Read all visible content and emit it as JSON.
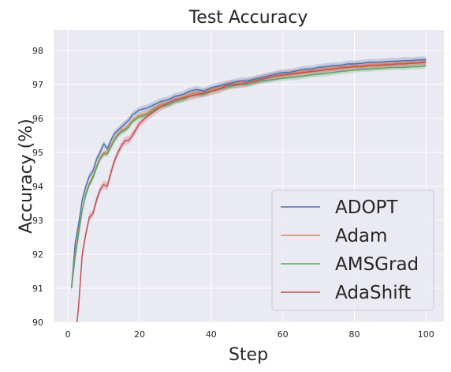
{
  "chart_data": {
    "type": "line",
    "title": "Test Accuracy",
    "xlabel": "Step",
    "ylabel": "Accuracy (%)",
    "xlim": [
      -4,
      105
    ],
    "ylim": [
      90,
      98.6
    ],
    "xticks": [
      0,
      20,
      40,
      60,
      80,
      100
    ],
    "yticks": [
      90,
      91,
      92,
      93,
      94,
      95,
      96,
      97,
      98
    ],
    "grid": true,
    "background": "#eaeaf2",
    "legend_position": "lower-right",
    "series": [
      {
        "name": "ADOPT",
        "color": "#4c72b0",
        "band": 0.1,
        "points": [
          [
            1,
            91.0
          ],
          [
            2,
            92.3
          ],
          [
            3,
            92.9
          ],
          [
            4,
            93.6
          ],
          [
            5,
            94.0
          ],
          [
            6,
            94.3
          ],
          [
            7,
            94.45
          ],
          [
            8,
            94.8
          ],
          [
            9,
            95.0
          ],
          [
            10,
            95.25
          ],
          [
            11,
            95.1
          ],
          [
            12,
            95.35
          ],
          [
            13,
            95.55
          ],
          [
            14,
            95.65
          ],
          [
            15,
            95.75
          ],
          [
            16,
            95.85
          ],
          [
            17,
            95.95
          ],
          [
            18,
            96.1
          ],
          [
            20,
            96.25
          ],
          [
            22,
            96.3
          ],
          [
            24,
            96.4
          ],
          [
            26,
            96.5
          ],
          [
            28,
            96.55
          ],
          [
            30,
            96.65
          ],
          [
            32,
            96.7
          ],
          [
            34,
            96.8
          ],
          [
            36,
            96.85
          ],
          [
            38,
            96.8
          ],
          [
            40,
            96.9
          ],
          [
            42,
            96.95
          ],
          [
            44,
            97.0
          ],
          [
            46,
            97.05
          ],
          [
            48,
            97.1
          ],
          [
            50,
            97.1
          ],
          [
            52,
            97.15
          ],
          [
            54,
            97.2
          ],
          [
            56,
            97.25
          ],
          [
            58,
            97.3
          ],
          [
            60,
            97.35
          ],
          [
            62,
            97.35
          ],
          [
            64,
            97.4
          ],
          [
            66,
            97.45
          ],
          [
            68,
            97.45
          ],
          [
            70,
            97.5
          ],
          [
            72,
            97.52
          ],
          [
            74,
            97.55
          ],
          [
            76,
            97.55
          ],
          [
            78,
            97.6
          ],
          [
            80,
            97.6
          ],
          [
            82,
            97.62
          ],
          [
            84,
            97.65
          ],
          [
            86,
            97.65
          ],
          [
            88,
            97.66
          ],
          [
            90,
            97.68
          ],
          [
            92,
            97.68
          ],
          [
            94,
            97.7
          ],
          [
            96,
            97.7
          ],
          [
            98,
            97.72
          ],
          [
            100,
            97.72
          ]
        ]
      },
      {
        "name": "Adam",
        "color": "#dd8452",
        "band": 0.08,
        "points": [
          [
            1,
            91.0
          ],
          [
            2,
            92.0
          ],
          [
            3,
            92.7
          ],
          [
            4,
            93.3
          ],
          [
            5,
            93.8
          ],
          [
            6,
            94.1
          ],
          [
            7,
            94.3
          ],
          [
            8,
            94.6
          ],
          [
            9,
            94.85
          ],
          [
            10,
            95.0
          ],
          [
            11,
            95.0
          ],
          [
            12,
            95.2
          ],
          [
            13,
            95.4
          ],
          [
            14,
            95.55
          ],
          [
            15,
            95.65
          ],
          [
            16,
            95.7
          ],
          [
            17,
            95.8
          ],
          [
            18,
            95.95
          ],
          [
            20,
            96.1
          ],
          [
            22,
            96.15
          ],
          [
            24,
            96.3
          ],
          [
            26,
            96.4
          ],
          [
            28,
            96.45
          ],
          [
            30,
            96.55
          ],
          [
            32,
            96.6
          ],
          [
            34,
            96.7
          ],
          [
            36,
            96.75
          ],
          [
            38,
            96.75
          ],
          [
            40,
            96.85
          ],
          [
            42,
            96.9
          ],
          [
            44,
            96.95
          ],
          [
            46,
            97.0
          ],
          [
            48,
            97.05
          ],
          [
            50,
            97.05
          ],
          [
            52,
            97.1
          ],
          [
            54,
            97.15
          ],
          [
            56,
            97.2
          ],
          [
            58,
            97.25
          ],
          [
            60,
            97.25
          ],
          [
            62,
            97.3
          ],
          [
            64,
            97.35
          ],
          [
            66,
            97.38
          ],
          [
            68,
            97.4
          ],
          [
            70,
            97.42
          ],
          [
            72,
            97.45
          ],
          [
            74,
            97.48
          ],
          [
            76,
            97.5
          ],
          [
            78,
            97.52
          ],
          [
            80,
            97.55
          ],
          [
            82,
            97.55
          ],
          [
            84,
            97.57
          ],
          [
            86,
            97.58
          ],
          [
            88,
            97.6
          ],
          [
            90,
            97.6
          ],
          [
            92,
            97.62
          ],
          [
            94,
            97.62
          ],
          [
            96,
            97.64
          ],
          [
            98,
            97.65
          ],
          [
            100,
            97.66
          ]
        ]
      },
      {
        "name": "AMSGrad",
        "color": "#55a868",
        "band": 0.08,
        "points": [
          [
            1,
            91.0
          ],
          [
            2,
            91.9
          ],
          [
            3,
            92.6
          ],
          [
            4,
            93.3
          ],
          [
            5,
            93.75
          ],
          [
            6,
            94.05
          ],
          [
            7,
            94.25
          ],
          [
            8,
            94.55
          ],
          [
            9,
            94.8
          ],
          [
            10,
            94.95
          ],
          [
            11,
            94.95
          ],
          [
            12,
            95.15
          ],
          [
            13,
            95.35
          ],
          [
            14,
            95.5
          ],
          [
            15,
            95.6
          ],
          [
            16,
            95.65
          ],
          [
            17,
            95.75
          ],
          [
            18,
            95.9
          ],
          [
            20,
            96.05
          ],
          [
            22,
            96.1
          ],
          [
            24,
            96.25
          ],
          [
            26,
            96.35
          ],
          [
            28,
            96.4
          ],
          [
            30,
            96.5
          ],
          [
            32,
            96.55
          ],
          [
            34,
            96.65
          ],
          [
            36,
            96.7
          ],
          [
            38,
            96.7
          ],
          [
            40,
            96.8
          ],
          [
            42,
            96.85
          ],
          [
            44,
            96.9
          ],
          [
            46,
            96.95
          ],
          [
            48,
            97.0
          ],
          [
            50,
            97.0
          ],
          [
            52,
            97.05
          ],
          [
            54,
            97.1
          ],
          [
            56,
            97.12
          ],
          [
            58,
            97.15
          ],
          [
            60,
            97.18
          ],
          [
            62,
            97.2
          ],
          [
            64,
            97.22
          ],
          [
            66,
            97.25
          ],
          [
            68,
            97.28
          ],
          [
            70,
            97.3
          ],
          [
            72,
            97.32
          ],
          [
            74,
            97.35
          ],
          [
            76,
            97.38
          ],
          [
            78,
            97.4
          ],
          [
            80,
            97.42
          ],
          [
            82,
            97.45
          ],
          [
            84,
            97.45
          ],
          [
            86,
            97.47
          ],
          [
            88,
            97.48
          ],
          [
            90,
            97.5
          ],
          [
            92,
            97.5
          ],
          [
            94,
            97.5
          ],
          [
            96,
            97.52
          ],
          [
            98,
            97.52
          ],
          [
            100,
            97.55
          ]
        ]
      },
      {
        "name": "AdaShift",
        "color": "#c44e52",
        "band": 0.12,
        "points": [
          [
            2,
            89.4
          ],
          [
            3,
            90.5
          ],
          [
            4,
            92.0
          ],
          [
            5,
            92.6
          ],
          [
            6,
            93.1
          ],
          [
            7,
            93.2
          ],
          [
            8,
            93.6
          ],
          [
            9,
            93.9
          ],
          [
            10,
            94.05
          ],
          [
            11,
            94.0
          ],
          [
            12,
            94.4
          ],
          [
            13,
            94.75
          ],
          [
            14,
            95.0
          ],
          [
            15,
            95.2
          ],
          [
            16,
            95.35
          ],
          [
            17,
            95.35
          ],
          [
            18,
            95.5
          ],
          [
            20,
            95.85
          ],
          [
            22,
            96.05
          ],
          [
            24,
            96.2
          ],
          [
            26,
            96.35
          ],
          [
            28,
            96.45
          ],
          [
            30,
            96.55
          ],
          [
            32,
            96.6
          ],
          [
            34,
            96.65
          ],
          [
            36,
            96.7
          ],
          [
            38,
            96.75
          ],
          [
            40,
            96.8
          ],
          [
            42,
            96.85
          ],
          [
            44,
            96.95
          ],
          [
            46,
            97.0
          ],
          [
            48,
            97.0
          ],
          [
            50,
            97.05
          ],
          [
            52,
            97.1
          ],
          [
            54,
            97.15
          ],
          [
            56,
            97.2
          ],
          [
            58,
            97.25
          ],
          [
            60,
            97.28
          ],
          [
            62,
            97.3
          ],
          [
            64,
            97.32
          ],
          [
            66,
            97.35
          ],
          [
            68,
            97.38
          ],
          [
            70,
            97.4
          ],
          [
            72,
            97.43
          ],
          [
            74,
            97.45
          ],
          [
            76,
            97.48
          ],
          [
            78,
            97.5
          ],
          [
            80,
            97.52
          ],
          [
            82,
            97.52
          ],
          [
            84,
            97.55
          ],
          [
            86,
            97.55
          ],
          [
            88,
            97.57
          ],
          [
            90,
            97.58
          ],
          [
            92,
            97.6
          ],
          [
            94,
            97.6
          ],
          [
            96,
            97.62
          ],
          [
            98,
            97.63
          ],
          [
            100,
            97.65
          ]
        ]
      }
    ]
  }
}
